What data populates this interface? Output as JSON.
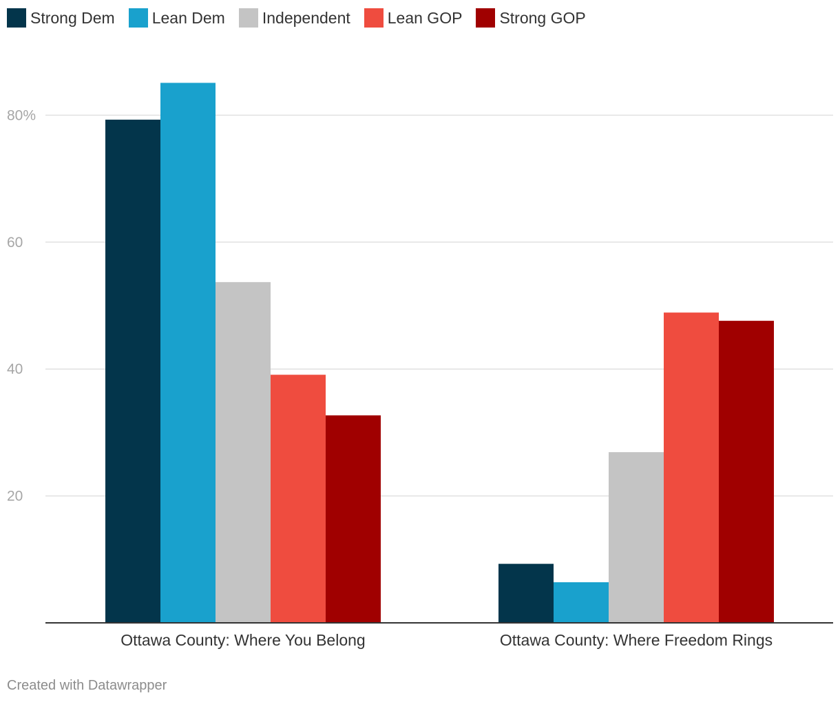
{
  "chart_data": {
    "type": "bar",
    "title": "",
    "xlabel": "",
    "ylabel": "",
    "ylim": [
      0,
      88
    ],
    "yticks": [
      {
        "value": 20,
        "label": "20"
      },
      {
        "value": 40,
        "label": "40"
      },
      {
        "value": 60,
        "label": "60"
      },
      {
        "value": 80,
        "label": "80%"
      }
    ],
    "categories": [
      "Ottawa County: Where You Belong",
      "Ottawa County: Where Freedom Rings"
    ],
    "series": [
      {
        "name": "Strong Dem",
        "color": "#03354b",
        "values": [
          79.3,
          9.3
        ]
      },
      {
        "name": "Lean Dem",
        "color": "#19a1cd",
        "values": [
          85.1,
          6.4
        ]
      },
      {
        "name": "Independent",
        "color": "#c4c4c4",
        "values": [
          53.7,
          26.9
        ]
      },
      {
        "name": "Lean GOP",
        "color": "#ef4c3f",
        "values": [
          39.1,
          48.9
        ]
      },
      {
        "name": "Strong GOP",
        "color": "#a00000",
        "values": [
          32.7,
          47.6
        ]
      }
    ],
    "legend_position": "top-left",
    "grid": true
  },
  "footer": {
    "credit": "Created with Datawrapper"
  }
}
